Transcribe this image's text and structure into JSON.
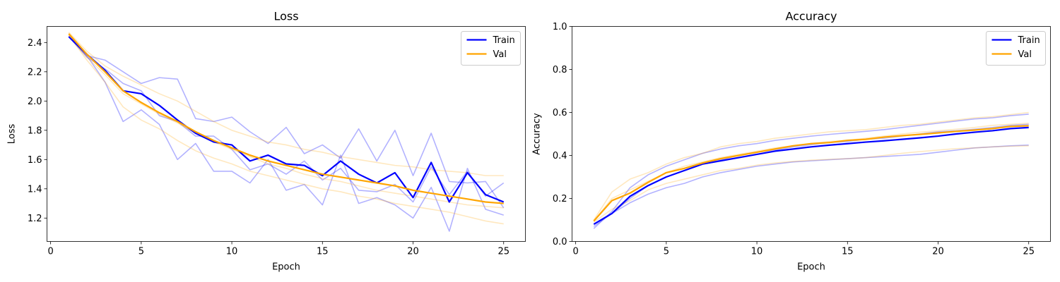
{
  "chart_data": [
    {
      "type": "line",
      "title": "Loss",
      "xlabel": "Epoch",
      "ylabel": "Loss",
      "xlim": [
        -0.2,
        26.2
      ],
      "ylim": [
        1.04,
        2.51
      ],
      "xticks": [
        0,
        5,
        10,
        15,
        20,
        25
      ],
      "yticks": [
        1.2,
        1.4,
        1.6,
        1.8,
        2.0,
        2.2,
        2.4
      ],
      "ytick_labels": [
        "1.2",
        "1.4",
        "1.6",
        "1.8",
        "2.0",
        "2.2",
        "2.4"
      ],
      "grid": false,
      "legend": "top-right",
      "x": [
        1,
        2,
        3,
        4,
        5,
        6,
        7,
        8,
        9,
        10,
        11,
        12,
        13,
        14,
        15,
        16,
        17,
        18,
        19,
        20,
        21,
        22,
        23,
        24,
        25
      ],
      "series": [
        {
          "name": "Train",
          "color": "#0000ff",
          "values": [
            2.44,
            2.32,
            2.21,
            2.07,
            2.05,
            1.97,
            1.87,
            1.78,
            1.72,
            1.7,
            1.59,
            1.63,
            1.57,
            1.56,
            1.49,
            1.59,
            1.5,
            1.44,
            1.51,
            1.34,
            1.58,
            1.31,
            1.51,
            1.36,
            1.31
          ]
        },
        {
          "name": "Val",
          "color": "#ffa500",
          "values": [
            2.46,
            2.32,
            2.2,
            2.07,
            1.99,
            1.92,
            1.86,
            1.79,
            1.73,
            1.68,
            1.63,
            1.59,
            1.56,
            1.53,
            1.5,
            1.48,
            1.46,
            1.44,
            1.42,
            1.39,
            1.37,
            1.35,
            1.33,
            1.31,
            1.3
          ]
        }
      ],
      "faint_series": [
        {
          "color": "#0000ff",
          "values": [
            2.44,
            2.31,
            2.28,
            2.2,
            2.12,
            2.16,
            2.15,
            1.88,
            1.86,
            1.89,
            1.79,
            1.71,
            1.82,
            1.64,
            1.7,
            1.61,
            1.81,
            1.59,
            1.8,
            1.49,
            1.78,
            1.45,
            1.44,
            1.45,
            1.27
          ]
        },
        {
          "color": "#0000ff",
          "values": [
            2.44,
            2.31,
            2.13,
            1.86,
            1.94,
            1.84,
            1.6,
            1.71,
            1.52,
            1.52,
            1.44,
            1.6,
            1.39,
            1.43,
            1.29,
            1.63,
            1.3,
            1.34,
            1.29,
            1.2,
            1.41,
            1.11,
            1.54,
            1.26,
            1.22
          ]
        },
        {
          "color": "#0000ff",
          "values": [
            2.44,
            2.3,
            2.22,
            2.12,
            2.07,
            1.9,
            1.86,
            1.76,
            1.76,
            1.67,
            1.53,
            1.57,
            1.5,
            1.59,
            1.46,
            1.54,
            1.39,
            1.38,
            1.43,
            1.31,
            1.55,
            1.36,
            1.52,
            1.35,
            1.44
          ]
        },
        {
          "color": "#ffa500",
          "values": [
            2.47,
            2.34,
            2.24,
            2.17,
            2.11,
            2.05,
            2.0,
            1.93,
            1.86,
            1.8,
            1.76,
            1.72,
            1.7,
            1.67,
            1.65,
            1.62,
            1.6,
            1.58,
            1.56,
            1.55,
            1.53,
            1.52,
            1.51,
            1.49,
            1.49
          ]
        },
        {
          "color": "#ffa500",
          "values": [
            2.45,
            2.28,
            2.13,
            1.96,
            1.87,
            1.81,
            1.73,
            1.66,
            1.61,
            1.57,
            1.52,
            1.49,
            1.46,
            1.43,
            1.4,
            1.38,
            1.35,
            1.33,
            1.3,
            1.28,
            1.26,
            1.24,
            1.21,
            1.18,
            1.16
          ]
        },
        {
          "color": "#ffa500",
          "values": [
            2.45,
            2.3,
            2.18,
            2.05,
            1.98,
            1.91,
            1.85,
            1.78,
            1.72,
            1.67,
            1.62,
            1.57,
            1.54,
            1.5,
            1.47,
            1.45,
            1.42,
            1.39,
            1.37,
            1.35,
            1.33,
            1.31,
            1.29,
            1.28,
            1.27
          ]
        }
      ]
    },
    {
      "type": "line",
      "title": "Accuracy",
      "xlabel": "Epoch",
      "ylabel": "Accuracy",
      "xlim": [
        -0.2,
        26.2
      ],
      "ylim": [
        0.0,
        1.0
      ],
      "xticks": [
        0,
        5,
        10,
        15,
        20,
        25
      ],
      "yticks": [
        0.0,
        0.2,
        0.4,
        0.6,
        0.8,
        1.0
      ],
      "ytick_labels": [
        "0.0",
        "0.2",
        "0.4",
        "0.6",
        "0.8",
        "1.0"
      ],
      "grid": false,
      "legend": "top-right",
      "x": [
        1,
        2,
        3,
        4,
        5,
        6,
        7,
        8,
        9,
        10,
        11,
        12,
        13,
        14,
        15,
        16,
        17,
        18,
        19,
        20,
        21,
        22,
        23,
        24,
        25
      ],
      "series": [
        {
          "name": "Train",
          "color": "#0000ff",
          "values": [
            0.08,
            0.13,
            0.21,
            0.26,
            0.3,
            0.33,
            0.36,
            0.375,
            0.39,
            0.405,
            0.42,
            0.43,
            0.44,
            0.448,
            0.455,
            0.462,
            0.468,
            0.475,
            0.482,
            0.49,
            0.5,
            0.508,
            0.515,
            0.525,
            0.53
          ]
        },
        {
          "name": "Val",
          "color": "#ffa500",
          "values": [
            0.095,
            0.19,
            0.225,
            0.275,
            0.32,
            0.34,
            0.365,
            0.385,
            0.4,
            0.415,
            0.43,
            0.445,
            0.455,
            0.46,
            0.47,
            0.475,
            0.485,
            0.492,
            0.498,
            0.505,
            0.512,
            0.518,
            0.525,
            0.535,
            0.538
          ]
        }
      ],
      "faint_series": [
        {
          "color": "#0000ff",
          "values": [
            0.06,
            0.14,
            0.25,
            0.31,
            0.35,
            0.38,
            0.41,
            0.43,
            0.445,
            0.455,
            0.47,
            0.48,
            0.49,
            0.498,
            0.505,
            0.512,
            0.52,
            0.53,
            0.54,
            0.55,
            0.56,
            0.57,
            0.575,
            0.585,
            0.592
          ]
        },
        {
          "color": "#0000ff",
          "values": [
            0.07,
            0.13,
            0.18,
            0.22,
            0.25,
            0.27,
            0.3,
            0.32,
            0.335,
            0.35,
            0.36,
            0.37,
            0.375,
            0.38,
            0.385,
            0.39,
            0.395,
            0.4,
            0.405,
            0.415,
            0.425,
            0.435,
            0.44,
            0.445,
            0.448
          ]
        },
        {
          "color": "#0000ff",
          "values": [
            0.08,
            0.13,
            0.2,
            0.26,
            0.3,
            0.33,
            0.36,
            0.38,
            0.4,
            0.415,
            0.425,
            0.44,
            0.45,
            0.46,
            0.465,
            0.475,
            0.48,
            0.49,
            0.5,
            0.51,
            0.515,
            0.522,
            0.53,
            0.54,
            0.545
          ]
        },
        {
          "color": "#ffa500",
          "values": [
            0.1,
            0.23,
            0.29,
            0.32,
            0.36,
            0.39,
            0.41,
            0.44,
            0.455,
            0.465,
            0.48,
            0.49,
            0.5,
            0.51,
            0.515,
            0.52,
            0.53,
            0.54,
            0.545,
            0.555,
            0.565,
            0.575,
            0.58,
            0.59,
            0.6
          ]
        },
        {
          "color": "#ffa500",
          "values": [
            0.09,
            0.15,
            0.19,
            0.24,
            0.27,
            0.29,
            0.31,
            0.33,
            0.34,
            0.355,
            0.365,
            0.372,
            0.378,
            0.382,
            0.385,
            0.39,
            0.4,
            0.41,
            0.418,
            0.425,
            0.432,
            0.435,
            0.44,
            0.443,
            0.445
          ]
        },
        {
          "color": "#ffa500",
          "values": [
            0.095,
            0.2,
            0.24,
            0.28,
            0.32,
            0.35,
            0.37,
            0.39,
            0.405,
            0.42,
            0.435,
            0.445,
            0.455,
            0.465,
            0.47,
            0.48,
            0.49,
            0.5,
            0.508,
            0.515,
            0.522,
            0.53,
            0.54,
            0.545,
            0.55
          ]
        }
      ]
    }
  ]
}
